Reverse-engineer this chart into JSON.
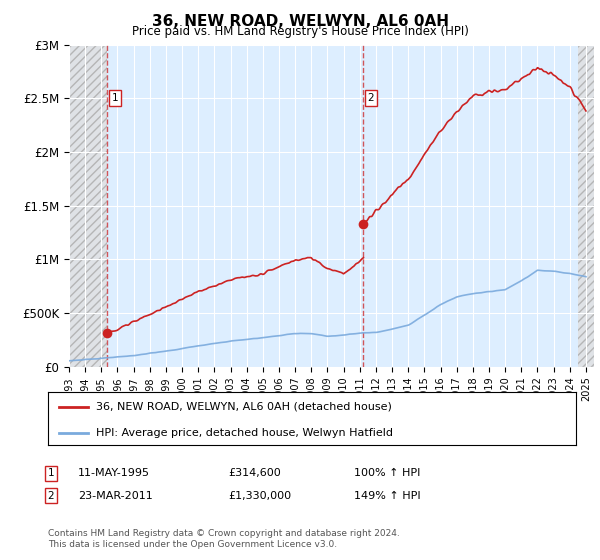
{
  "title": "36, NEW ROAD, WELWYN, AL6 0AH",
  "subtitle": "Price paid vs. HM Land Registry's House Price Index (HPI)",
  "xlim_start": 1993.0,
  "xlim_end": 2025.5,
  "ylim": [
    0,
    3000000
  ],
  "yticks": [
    0,
    500000,
    1000000,
    1500000,
    2000000,
    2500000,
    3000000
  ],
  "ytick_labels": [
    "£0",
    "£500K",
    "£1M",
    "£1.5M",
    "£2M",
    "£2.5M",
    "£3M"
  ],
  "hpi_color": "#7aaadd",
  "price_color": "#cc2222",
  "transaction1_x": 1995.37,
  "transaction1_y": 314600,
  "transaction2_x": 2011.23,
  "transaction2_y": 1330000,
  "legend_line1": "36, NEW ROAD, WELWYN, AL6 0AH (detached house)",
  "legend_line2": "HPI: Average price, detached house, Welwyn Hatfield",
  "note1_date": "11-MAY-1995",
  "note1_price": "£314,600",
  "note1_hpi": "100% ↑ HPI",
  "note2_date": "23-MAR-2011",
  "note2_price": "£1,330,000",
  "note2_hpi": "149% ↑ HPI",
  "footer": "Contains HM Land Registry data © Crown copyright and database right 2024.\nThis data is licensed under the Open Government Licence v3.0.",
  "bg_color": "#ddeeff",
  "hatch_color": "#aaaaaa",
  "hatch_bg": "#e0e0e0"
}
